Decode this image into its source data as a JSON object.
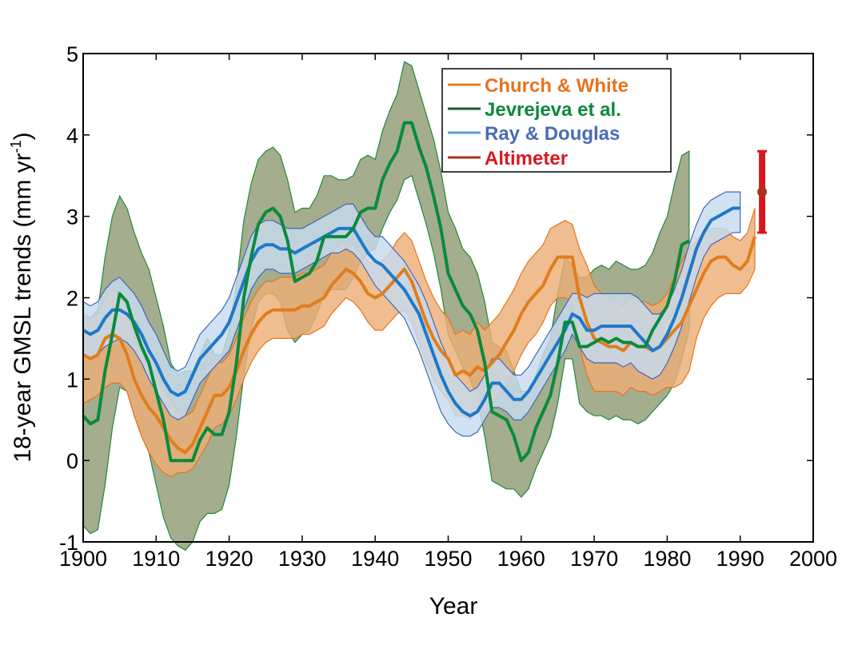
{
  "chart_data": {
    "type": "line",
    "xlabel": "Year",
    "ylabel": "18-year GMSL trends (mm yr",
    "ylabel_sup": "-1",
    "ylabel_close": ")",
    "xlim": [
      1900,
      2000
    ],
    "ylim": [
      -1,
      5
    ],
    "x_ticks": [
      1900,
      1910,
      1920,
      1930,
      1940,
      1950,
      1960,
      1970,
      1980,
      1990,
      2000
    ],
    "y_ticks": [
      -1,
      0,
      1,
      2,
      3,
      4,
      5
    ],
    "grid": false,
    "legend_position": "top-right",
    "series": [
      {
        "name": "Church & White",
        "color": "#e8731e",
        "band_fill": "#ecae77",
        "band_edge": "#e8731e",
        "line_color": "#e07d1c",
        "label_color": "#e8731e",
        "x": [
          1900,
          1901,
          1902,
          1903,
          1904,
          1905,
          1906,
          1907,
          1908,
          1909,
          1910,
          1911,
          1912,
          1913,
          1914,
          1915,
          1916,
          1917,
          1918,
          1919,
          1920,
          1921,
          1922,
          1923,
          1924,
          1925,
          1926,
          1927,
          1928,
          1929,
          1930,
          1931,
          1932,
          1933,
          1934,
          1935,
          1936,
          1937,
          1938,
          1939,
          1940,
          1941,
          1942,
          1943,
          1944,
          1945,
          1946,
          1947,
          1948,
          1949,
          1950,
          1951,
          1952,
          1953,
          1954,
          1955,
          1956,
          1957,
          1958,
          1959,
          1960,
          1961,
          1962,
          1963,
          1964,
          1965,
          1966,
          1967,
          1968,
          1969,
          1970,
          1971,
          1972,
          1973,
          1974,
          1975,
          1976,
          1977,
          1978,
          1979,
          1980,
          1981,
          1982,
          1983,
          1984,
          1985,
          1986,
          1987,
          1988,
          1989,
          1990,
          1991,
          1992
        ],
        "y": [
          1.3,
          1.25,
          1.3,
          1.5,
          1.55,
          1.5,
          1.3,
          1.0,
          0.8,
          0.65,
          0.55,
          0.4,
          0.25,
          0.15,
          0.1,
          0.2,
          0.4,
          0.6,
          0.8,
          0.8,
          0.9,
          1.1,
          1.35,
          1.55,
          1.7,
          1.8,
          1.85,
          1.85,
          1.85,
          1.85,
          1.9,
          1.9,
          1.95,
          2.0,
          2.15,
          2.25,
          2.35,
          2.3,
          2.2,
          2.05,
          2.0,
          2.05,
          2.15,
          2.25,
          2.35,
          2.2,
          1.95,
          1.7,
          1.5,
          1.35,
          1.25,
          1.05,
          1.1,
          1.05,
          1.15,
          1.1,
          1.2,
          1.3,
          1.45,
          1.6,
          1.8,
          1.95,
          2.05,
          2.15,
          2.35,
          2.5,
          2.5,
          2.5,
          2.0,
          1.7,
          1.5,
          1.45,
          1.4,
          1.4,
          1.35,
          1.45,
          1.4,
          1.4,
          1.35,
          1.4,
          1.5,
          1.6,
          1.7,
          1.9,
          2.1,
          2.3,
          2.45,
          2.5,
          2.5,
          2.4,
          2.35,
          2.45,
          2.75
        ],
        "lower": [
          0.7,
          0.75,
          0.8,
          0.9,
          0.95,
          0.95,
          0.85,
          0.55,
          0.3,
          0.1,
          -0.05,
          -0.15,
          -0.2,
          -0.15,
          -0.15,
          -0.1,
          0.05,
          0.2,
          0.4,
          0.45,
          0.55,
          0.75,
          1.0,
          1.2,
          1.35,
          1.45,
          1.5,
          1.5,
          1.5,
          1.5,
          1.55,
          1.55,
          1.6,
          1.65,
          1.8,
          1.9,
          2.0,
          1.95,
          1.85,
          1.7,
          1.6,
          1.6,
          1.7,
          1.8,
          1.85,
          1.7,
          1.45,
          1.2,
          1.0,
          0.85,
          0.75,
          0.55,
          0.55,
          0.5,
          0.6,
          0.6,
          0.7,
          0.8,
          0.95,
          1.1,
          1.3,
          1.45,
          1.55,
          1.7,
          1.9,
          2.0,
          2.0,
          1.95,
          1.4,
          1.05,
          0.85,
          0.85,
          0.85,
          0.85,
          0.8,
          0.9,
          0.85,
          0.85,
          0.8,
          0.85,
          0.9,
          0.9,
          0.95,
          1.1,
          1.5,
          1.75,
          1.9,
          2.0,
          2.05,
          2.05,
          2.05,
          2.15,
          2.35
        ],
        "upper": [
          1.75,
          1.75,
          1.8,
          2.0,
          2.1,
          2.05,
          1.8,
          1.5,
          1.3,
          1.15,
          1.05,
          0.9,
          0.75,
          0.6,
          0.55,
          0.6,
          0.8,
          1.0,
          1.2,
          1.2,
          1.3,
          1.5,
          1.75,
          1.95,
          2.1,
          2.2,
          2.2,
          2.25,
          2.25,
          2.25,
          2.3,
          2.3,
          2.35,
          2.4,
          2.55,
          2.65,
          2.7,
          2.65,
          2.55,
          2.45,
          2.4,
          2.45,
          2.55,
          2.7,
          2.8,
          2.7,
          2.45,
          2.2,
          2.0,
          1.85,
          1.75,
          1.55,
          1.6,
          1.55,
          1.7,
          1.6,
          1.7,
          1.8,
          1.95,
          2.1,
          2.3,
          2.45,
          2.55,
          2.65,
          2.85,
          2.9,
          2.95,
          2.9,
          2.6,
          2.4,
          2.15,
          2.05,
          2.0,
          1.95,
          1.9,
          2.0,
          1.95,
          1.95,
          1.9,
          1.95,
          2.05,
          2.25,
          2.45,
          2.6,
          2.7,
          2.8,
          2.85,
          2.85,
          2.85,
          2.75,
          2.7,
          2.8,
          3.1
        ]
      },
      {
        "name": "Jevrejeva et al.",
        "color": "#0a8a3c",
        "band_fill": "#a4ad8d",
        "band_edge": "#1f8a3a",
        "line_color": "#0a8a3c",
        "label_color": "#0a8a3c",
        "x": [
          1900,
          1901,
          1902,
          1903,
          1904,
          1905,
          1906,
          1907,
          1908,
          1909,
          1910,
          1911,
          1912,
          1913,
          1914,
          1915,
          1916,
          1917,
          1918,
          1919,
          1920,
          1921,
          1922,
          1923,
          1924,
          1925,
          1926,
          1927,
          1928,
          1929,
          1930,
          1931,
          1932,
          1933,
          1934,
          1935,
          1936,
          1937,
          1938,
          1939,
          1940,
          1941,
          1942,
          1943,
          1944,
          1945,
          1946,
          1947,
          1948,
          1949,
          1950,
          1951,
          1952,
          1953,
          1954,
          1955,
          1956,
          1957,
          1958,
          1959,
          1960,
          1961,
          1962,
          1963,
          1964,
          1965,
          1966,
          1967,
          1968,
          1969,
          1970,
          1971,
          1972,
          1973,
          1974,
          1975,
          1976,
          1977,
          1978,
          1979,
          1980,
          1981,
          1982,
          1983
        ],
        "y": [
          0.55,
          0.45,
          0.5,
          1.1,
          1.55,
          2.05,
          1.95,
          1.65,
          1.4,
          1.2,
          0.85,
          0.5,
          0.0,
          0.0,
          0.0,
          0.0,
          0.25,
          0.4,
          0.32,
          0.32,
          0.6,
          1.2,
          2.0,
          2.5,
          2.9,
          3.05,
          3.1,
          3.0,
          2.7,
          2.2,
          2.25,
          2.3,
          2.45,
          2.75,
          2.75,
          2.75,
          2.75,
          2.85,
          3.05,
          3.1,
          3.1,
          3.45,
          3.65,
          3.8,
          4.15,
          4.15,
          3.85,
          3.6,
          3.25,
          2.85,
          2.3,
          2.1,
          1.9,
          1.8,
          1.6,
          1.2,
          0.6,
          0.55,
          0.5,
          0.3,
          0.0,
          0.1,
          0.4,
          0.6,
          0.8,
          1.2,
          1.7,
          1.7,
          1.4,
          1.4,
          1.45,
          1.5,
          1.45,
          1.5,
          1.45,
          1.45,
          1.4,
          1.4,
          1.6,
          1.75,
          1.9,
          2.2,
          2.65,
          2.7
        ],
        "lower": [
          -0.8,
          -0.9,
          -0.85,
          -0.3,
          0.4,
          0.9,
          0.85,
          0.55,
          0.3,
          0.1,
          -0.3,
          -0.7,
          -0.95,
          -1.05,
          -1.1,
          -1.0,
          -0.75,
          -0.65,
          -0.65,
          -0.6,
          -0.3,
          0.3,
          1.05,
          1.6,
          1.95,
          2.05,
          2.05,
          1.95,
          1.6,
          1.45,
          1.55,
          1.6,
          1.8,
          2.05,
          2.1,
          2.1,
          2.1,
          2.25,
          2.45,
          2.55,
          2.6,
          2.85,
          3.05,
          3.2,
          3.45,
          3.5,
          3.2,
          2.9,
          2.55,
          2.1,
          1.55,
          1.35,
          1.15,
          1.0,
          0.75,
          0.3,
          -0.25,
          -0.3,
          -0.35,
          -0.35,
          -0.45,
          -0.35,
          -0.1,
          0.1,
          0.3,
          0.7,
          1.25,
          1.25,
          0.7,
          0.6,
          0.55,
          0.55,
          0.5,
          0.55,
          0.5,
          0.5,
          0.45,
          0.5,
          0.6,
          0.7,
          0.8,
          0.95,
          1.25,
          1.6
        ],
        "upper": [
          1.8,
          1.75,
          1.85,
          2.5,
          3.0,
          3.25,
          3.1,
          2.8,
          2.55,
          2.35,
          2.0,
          1.65,
          1.2,
          1.05,
          1.1,
          1.1,
          1.3,
          1.5,
          1.3,
          1.3,
          1.6,
          2.15,
          2.95,
          3.4,
          3.7,
          3.8,
          3.85,
          3.75,
          3.45,
          3.05,
          3.1,
          3.1,
          3.25,
          3.5,
          3.5,
          3.45,
          3.45,
          3.5,
          3.7,
          3.75,
          3.7,
          4.05,
          4.3,
          4.5,
          4.9,
          4.85,
          4.55,
          4.25,
          3.95,
          3.55,
          3.05,
          2.85,
          2.6,
          2.5,
          2.3,
          1.95,
          1.45,
          1.4,
          1.35,
          1.1,
          0.85,
          0.85,
          1.05,
          1.3,
          1.5,
          2.05,
          2.5,
          2.4,
          2.25,
          2.25,
          2.35,
          2.4,
          2.35,
          2.45,
          2.4,
          2.35,
          2.35,
          2.4,
          2.55,
          2.8,
          3.0,
          3.4,
          3.75,
          3.8
        ]
      },
      {
        "name": "Ray & Douglas",
        "color": "#1f78c8",
        "band_fill": "#c6dcef",
        "band_edge": "#4466b8",
        "line_color": "#1f78c8",
        "label_color": "#4a6cb4",
        "x": [
          1900,
          1901,
          1902,
          1903,
          1904,
          1905,
          1906,
          1907,
          1908,
          1909,
          1910,
          1911,
          1912,
          1913,
          1914,
          1915,
          1916,
          1917,
          1918,
          1919,
          1920,
          1921,
          1922,
          1923,
          1924,
          1925,
          1926,
          1927,
          1928,
          1929,
          1930,
          1931,
          1932,
          1933,
          1934,
          1935,
          1936,
          1937,
          1938,
          1939,
          1940,
          1941,
          1942,
          1943,
          1944,
          1945,
          1946,
          1947,
          1948,
          1949,
          1950,
          1951,
          1952,
          1953,
          1954,
          1955,
          1956,
          1957,
          1958,
          1959,
          1960,
          1961,
          1962,
          1963,
          1964,
          1965,
          1966,
          1967,
          1968,
          1969,
          1970,
          1971,
          1972,
          1973,
          1974,
          1975,
          1976,
          1977,
          1978,
          1979,
          1980,
          1981,
          1982,
          1983,
          1984,
          1985,
          1986,
          1987,
          1988,
          1989,
          1990
        ],
        "y": [
          1.6,
          1.55,
          1.6,
          1.75,
          1.85,
          1.85,
          1.8,
          1.7,
          1.55,
          1.35,
          1.2,
          1.0,
          0.85,
          0.8,
          0.85,
          1.05,
          1.25,
          1.35,
          1.45,
          1.55,
          1.7,
          1.95,
          2.2,
          2.45,
          2.6,
          2.65,
          2.65,
          2.6,
          2.6,
          2.55,
          2.6,
          2.65,
          2.7,
          2.75,
          2.8,
          2.85,
          2.85,
          2.85,
          2.7,
          2.55,
          2.45,
          2.4,
          2.3,
          2.2,
          2.1,
          1.95,
          1.8,
          1.55,
          1.3,
          1.05,
          0.85,
          0.7,
          0.6,
          0.55,
          0.6,
          0.75,
          0.95,
          0.95,
          0.85,
          0.75,
          0.75,
          0.85,
          1.0,
          1.15,
          1.3,
          1.45,
          1.6,
          1.8,
          1.75,
          1.6,
          1.6,
          1.65,
          1.65,
          1.65,
          1.65,
          1.65,
          1.55,
          1.45,
          1.35,
          1.4,
          1.55,
          1.75,
          2.0,
          2.3,
          2.6,
          2.8,
          2.95,
          3.0,
          3.05,
          3.1,
          3.1
        ],
        "lower": [
          1.3,
          1.25,
          1.3,
          1.4,
          1.45,
          1.5,
          1.45,
          1.35,
          1.2,
          1.0,
          0.85,
          0.7,
          0.55,
          0.5,
          0.55,
          0.75,
          0.95,
          1.05,
          1.15,
          1.25,
          1.35,
          1.6,
          1.85,
          2.1,
          2.25,
          2.35,
          2.35,
          2.3,
          2.3,
          2.3,
          2.35,
          2.4,
          2.45,
          2.5,
          2.55,
          2.55,
          2.6,
          2.55,
          2.45,
          2.3,
          2.15,
          2.05,
          1.95,
          1.85,
          1.75,
          1.55,
          1.35,
          1.1,
          0.85,
          0.6,
          0.45,
          0.35,
          0.3,
          0.3,
          0.35,
          0.5,
          0.65,
          0.65,
          0.6,
          0.5,
          0.5,
          0.6,
          0.75,
          0.9,
          1.05,
          1.2,
          1.35,
          1.55,
          1.4,
          1.25,
          1.2,
          1.2,
          1.2,
          1.2,
          1.15,
          1.2,
          1.1,
          1.05,
          1.0,
          1.05,
          1.2,
          1.4,
          1.65,
          1.95,
          2.25,
          2.5,
          2.65,
          2.7,
          2.75,
          2.8,
          2.8
        ],
        "upper": [
          1.95,
          1.9,
          1.95,
          2.1,
          2.2,
          2.25,
          2.15,
          2.05,
          1.9,
          1.7,
          1.55,
          1.35,
          1.15,
          1.1,
          1.15,
          1.35,
          1.55,
          1.65,
          1.75,
          1.85,
          2.0,
          2.25,
          2.5,
          2.75,
          2.9,
          2.95,
          2.95,
          2.9,
          2.85,
          2.85,
          2.85,
          2.9,
          2.95,
          3.0,
          3.05,
          3.1,
          3.15,
          3.15,
          3.0,
          2.85,
          2.75,
          2.75,
          2.65,
          2.55,
          2.45,
          2.3,
          2.15,
          1.95,
          1.7,
          1.45,
          1.25,
          1.05,
          0.95,
          0.85,
          0.9,
          1.05,
          1.25,
          1.25,
          1.15,
          1.05,
          1.05,
          1.15,
          1.3,
          1.45,
          1.6,
          1.75,
          1.9,
          2.05,
          2.05,
          2.0,
          2.05,
          2.05,
          2.05,
          2.05,
          2.05,
          2.05,
          2.0,
          1.9,
          1.8,
          1.8,
          1.9,
          2.1,
          2.35,
          2.65,
          2.9,
          3.1,
          3.2,
          3.25,
          3.3,
          3.3,
          3.3
        ]
      },
      {
        "name": "Altimeter",
        "color": "#d7191c",
        "line_color": "#d7191c",
        "label_color": "#d7191c",
        "x": [
          1993
        ],
        "y": [
          3.3
        ],
        "lower": [
          2.8
        ],
        "upper": [
          3.8
        ]
      }
    ]
  }
}
